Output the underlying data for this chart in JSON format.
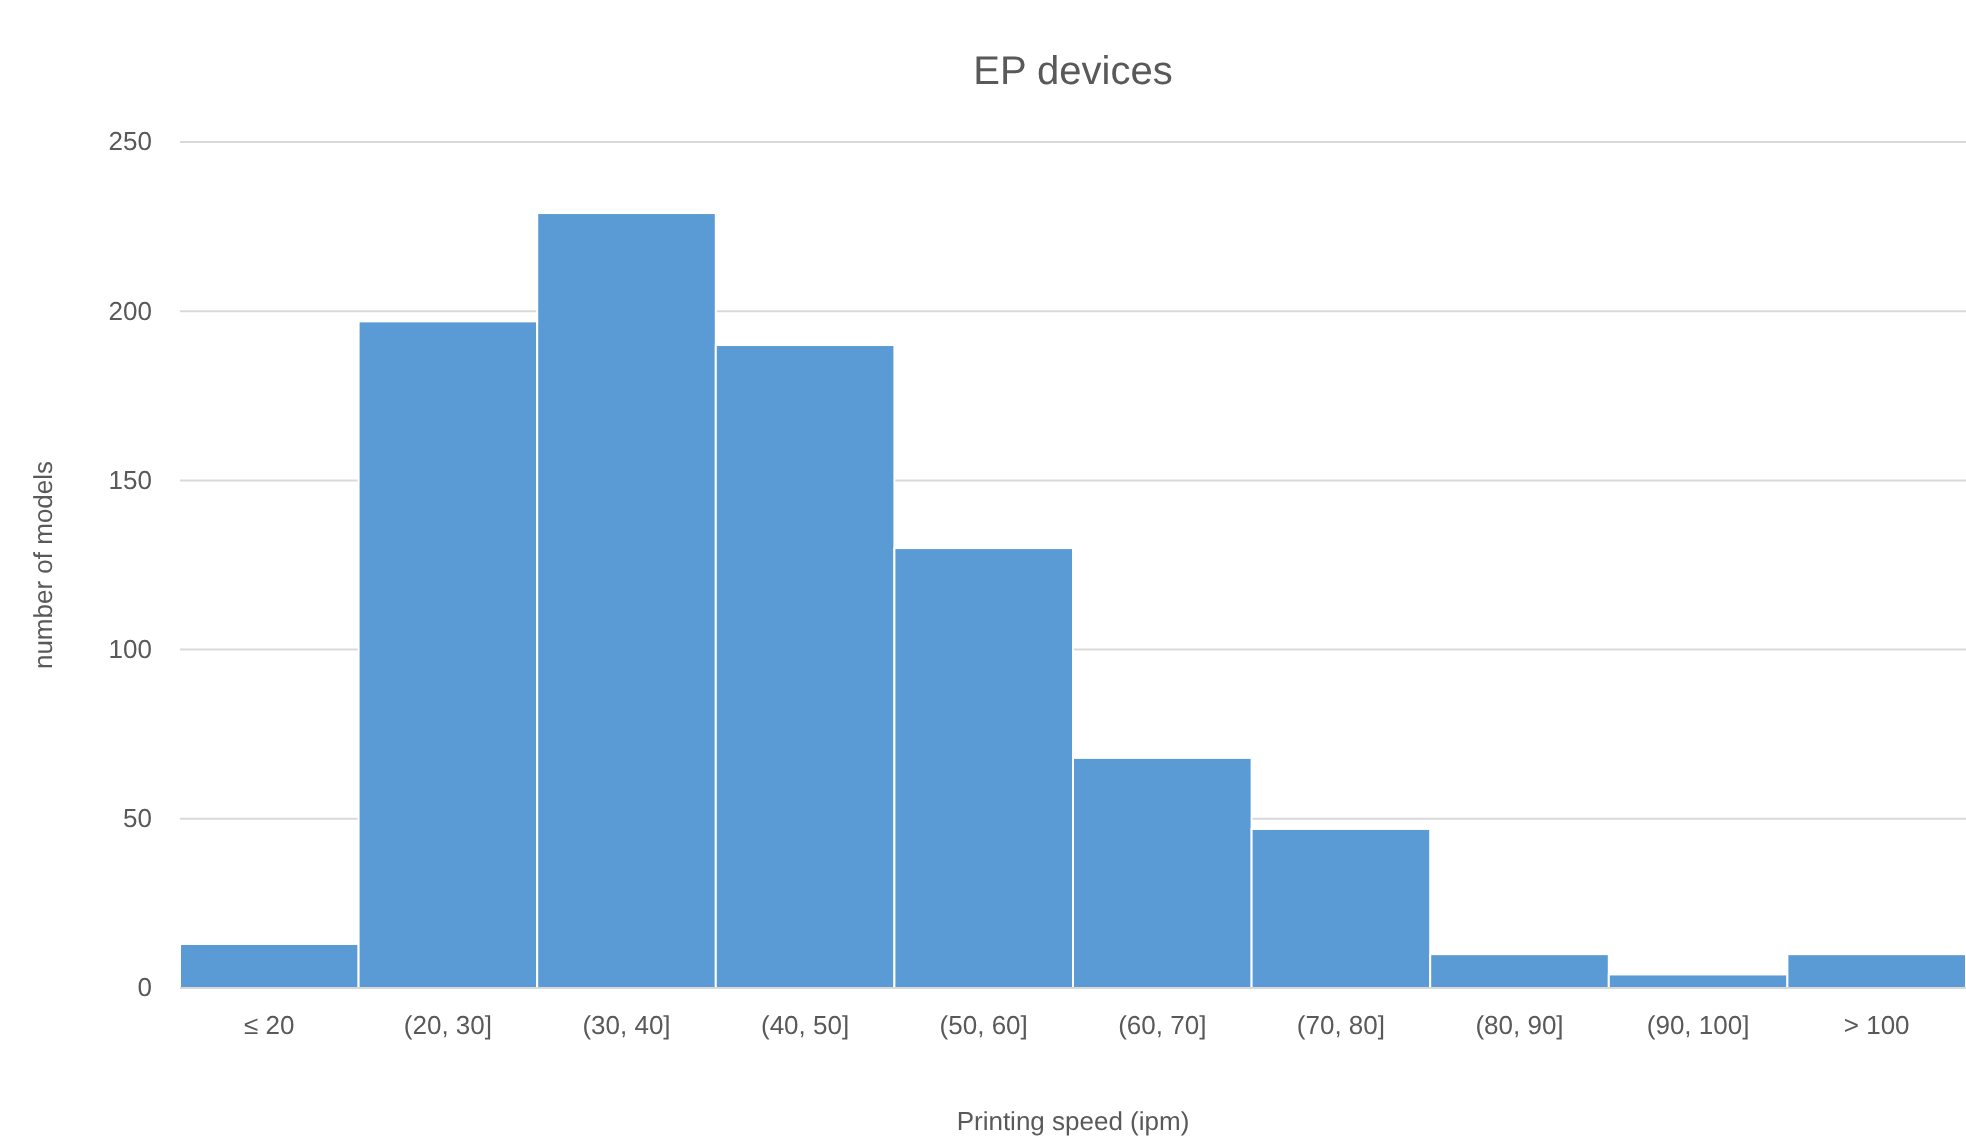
{
  "chart_data": {
    "type": "bar",
    "title": "EP devices",
    "xlabel": "Printing speed (ipm)",
    "ylabel": "number of models",
    "categories": [
      "≤ 20",
      "(20, 30]",
      "(30, 40]",
      "(40, 50]",
      "(50, 60]",
      "(60, 70]",
      "(70, 80]",
      "(80, 90]",
      "(90, 100]",
      "> 100"
    ],
    "values": [
      13,
      197,
      229,
      190,
      130,
      68,
      47,
      10,
      4,
      10
    ],
    "color": "#5b9bd5",
    "ylim": [
      0,
      250
    ],
    "yticks": [
      0,
      50,
      100,
      150,
      200,
      250
    ],
    "grid": "y"
  }
}
